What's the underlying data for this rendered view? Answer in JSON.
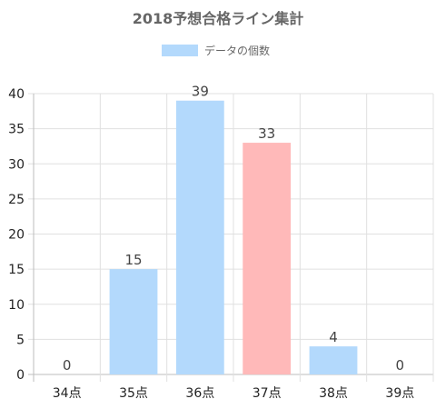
{
  "chart_data": {
    "type": "bar",
    "title": "2018予想合格ライン集計",
    "legend": {
      "label": "データの個数",
      "position": "top"
    },
    "categories": [
      "34点",
      "35点",
      "36点",
      "37点",
      "38点",
      "39点"
    ],
    "series": [
      {
        "name": "データの個数",
        "values": [
          0,
          15,
          39,
          33,
          4,
          0
        ]
      }
    ],
    "bar_colors": [
      "#b3d9fc",
      "#b3d9fc",
      "#b3d9fc",
      "#ffb9b9",
      "#b3d9fc",
      "#b3d9fc"
    ],
    "ylim": [
      0,
      40
    ],
    "yticks": [
      0,
      5,
      10,
      15,
      20,
      25,
      30,
      35,
      40
    ],
    "grid": true,
    "colors": {
      "primary": "#b3d9fc",
      "highlight": "#ffb9b9",
      "grid": "#e0e0e0",
      "text": "#666666"
    }
  }
}
